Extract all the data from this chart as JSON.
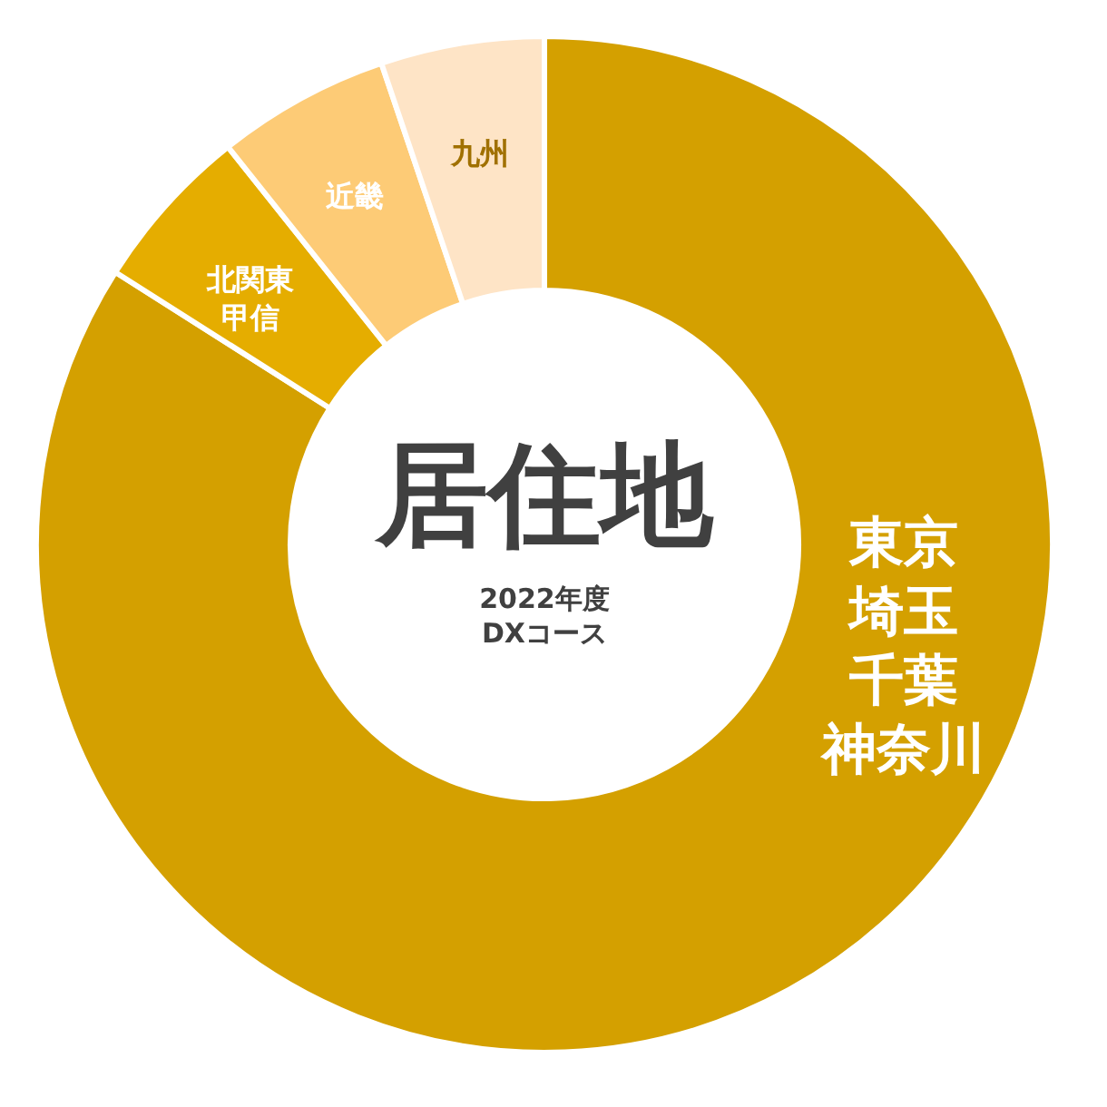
{
  "chart_data": {
    "type": "donut",
    "title": "居住地",
    "subtitle": "2022年度DXコース",
    "categories": [
      "東京埼玉千葉神奈川",
      "北関東甲信",
      "近畿",
      "九州"
    ],
    "values": [
      84,
      5.3,
      5.5,
      5.2
    ],
    "colors": [
      "#d4a000",
      "#e5ad00",
      "#fdcb76",
      "#fee4c6"
    ]
  }
}
